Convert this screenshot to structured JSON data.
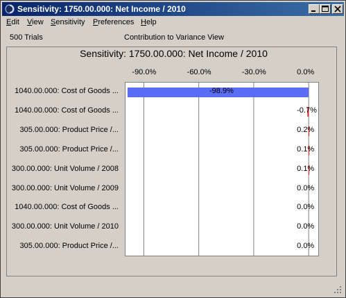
{
  "window": {
    "title": "Sensitivity: 1750.00.000: Net Income / 2010",
    "controls": [
      "minimize-icon",
      "maximize-icon",
      "close-icon"
    ]
  },
  "menu": {
    "items": [
      "Edit",
      "View",
      "Sensitivity",
      "Preferences",
      "Help"
    ]
  },
  "info": {
    "trials": "500 Trials",
    "view_name": "Contribution to Variance View"
  },
  "chart_data": {
    "type": "bar",
    "orientation": "horizontal",
    "title": "Sensitivity: 1750.00.000: Net Income / 2010",
    "x_ticks": [
      "-90.0%",
      "-60.0%",
      "-30.0%",
      "0.0%"
    ],
    "xlim": [
      -100,
      6
    ],
    "grid": true,
    "categories": [
      "1040.00.000: Cost of Goods ...",
      "1040.00.000: Cost of Goods ...",
      "305.00.000: Product Price /...",
      "305.00.000: Product Price /...",
      "300.00.000: Unit Volume / 2008",
      "300.00.000: Unit Volume / 2009",
      "1040.00.000: Cost of Goods ...",
      "300.00.000: Unit Volume / 2010",
      "305.00.000: Product Price /..."
    ],
    "values": [
      -98.9,
      -0.7,
      0.2,
      0.1,
      0.1,
      0.0,
      0.0,
      0.0,
      0.0
    ],
    "value_labels": [
      "-98.9%",
      "-0.7%",
      "0.2%",
      "0.1%",
      "0.1%",
      "0.0%",
      "0.0%",
      "0.0%",
      "0.0%"
    ],
    "colors": {
      "negative": "#5a6ef5",
      "positive": "#ff2020",
      "grid": "#808080"
    }
  }
}
